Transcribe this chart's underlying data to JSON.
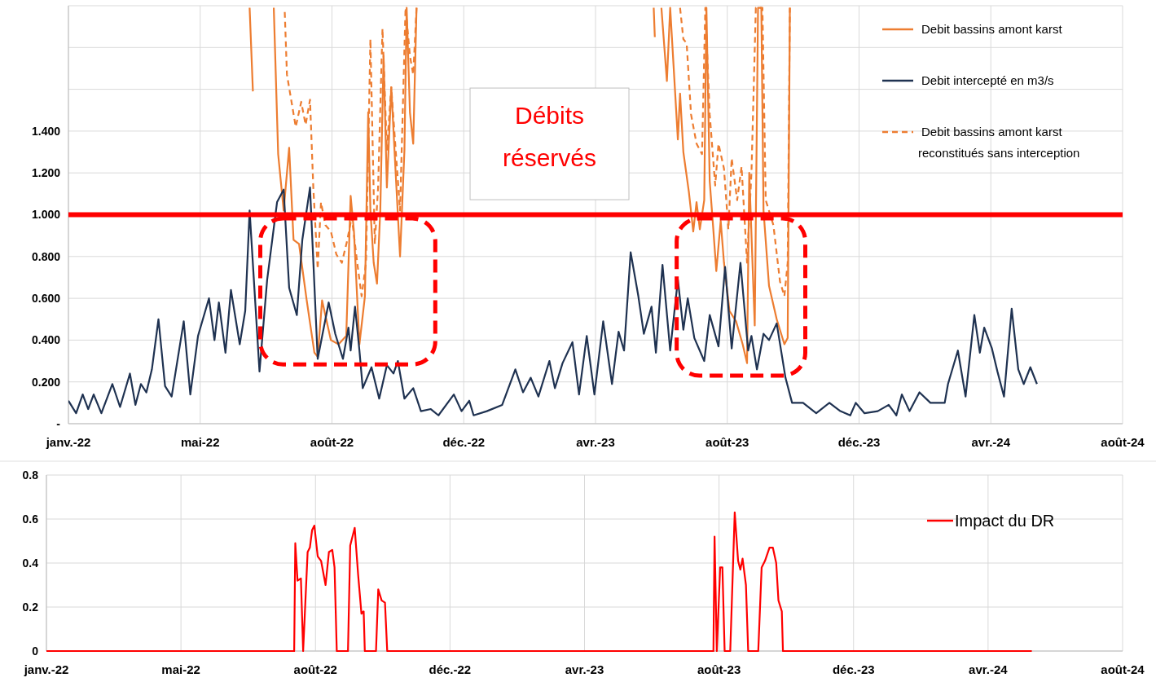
{
  "chart_data": [
    {
      "type": "line",
      "annotations": [
        "Débits réservés"
      ],
      "legend": "top right",
      "grid": true,
      "xlim": [
        "2022-01-01",
        "2024-08-18"
      ],
      "xticks": [
        {
          "value": "2022-01-01",
          "label": "janv.-22"
        },
        {
          "value": "2022-05-01",
          "label": "mai-22"
        },
        {
          "value": "2022-08-29",
          "label": "août-22"
        },
        {
          "value": "2022-12-27",
          "label": "déc.-22"
        },
        {
          "value": "2023-04-26",
          "label": "avr.-23"
        },
        {
          "value": "2023-08-24",
          "label": "août-23"
        },
        {
          "value": "2023-12-22",
          "label": "déc.-23"
        },
        {
          "value": "2024-04-20",
          "label": "avr.-24"
        },
        {
          "value": "2024-08-18",
          "label": "août-24"
        }
      ],
      "ylim": [
        0,
        2
      ],
      "yticks": [
        {
          "value": 0,
          "label": "-"
        },
        {
          "value": 0.2,
          "label": "0.200"
        },
        {
          "value": 0.4,
          "label": "0.400"
        },
        {
          "value": 0.6,
          "label": "0.600"
        },
        {
          "value": 0.8,
          "label": "0.800"
        },
        {
          "value": 1,
          "label": "1.000"
        },
        {
          "value": 1.2,
          "label": "1.200"
        },
        {
          "value": 1.4,
          "label": "1.400"
        },
        {
          "value": 1.6,
          "label": null
        },
        {
          "value": 1.8,
          "label": null
        },
        {
          "value": 2,
          "label": null
        }
      ],
      "ref_lines": [
        {
          "axis": "y",
          "value": 1,
          "color": "#ff0000"
        }
      ],
      "series": [
        {
          "name": "Debit bassins amont karst",
          "color": "#ed7d31",
          "line_style": "solid",
          "x": [
            "2022-06-15",
            "2022-06-18",
            "2022-06-19",
            "2022-07-07",
            "2022-07-11",
            "2022-07-16",
            "2022-07-21",
            "2022-07-25",
            "2022-07-30",
            "2022-08-06",
            "2022-08-13",
            "2022-08-16",
            "2022-08-20",
            "2022-08-28",
            "2022-09-04",
            "2022-09-11",
            "2022-09-15",
            "2022-09-18",
            "2022-09-23",
            "2022-09-28",
            "2022-10-01",
            "2022-10-03",
            "2022-10-06",
            "2022-10-09",
            "2022-10-12",
            "2022-10-15",
            "2022-10-18",
            "2022-10-22",
            "2022-10-26",
            "2022-10-30",
            "2022-11-03",
            "2022-11-05",
            "2022-11-08",
            "2022-11-11",
            "2022-11-14",
            "2022-11-15",
            "2023-06-18",
            "2023-06-19",
            "2023-06-20",
            "2023-06-25",
            "2023-06-30",
            "2023-07-03",
            "2023-07-10",
            "2023-07-12",
            "2023-07-15",
            "2023-07-20",
            "2023-07-24",
            "2023-07-27",
            "2023-07-30",
            "2023-08-03",
            "2023-08-05",
            "2023-08-08",
            "2023-08-11",
            "2023-08-14",
            "2023-08-18",
            "2023-08-21",
            "2023-08-26",
            "2023-09-01",
            "2023-09-07",
            "2023-09-11",
            "2023-09-13",
            "2023-09-18",
            "2023-09-21",
            "2023-09-24",
            "2023-09-26",
            "2023-10-01",
            "2023-10-08",
            "2023-10-15",
            "2023-10-18",
            "2023-10-20"
          ],
          "values": [
            1.99,
            1.59,
            null,
            1.99,
            1.29,
            1.02,
            1.32,
            0.88,
            0.86,
            0.59,
            0.34,
            0.32,
            0.59,
            0.4,
            0.38,
            0.42,
            1.09,
            0.92,
            0.38,
            0.61,
            1.49,
            1.02,
            0.77,
            0.67,
            1.02,
            1.76,
            1.13,
            1.61,
            1.2,
            0.8,
            1.31,
            1.99,
            1.49,
            1.34,
            1.99,
            null,
            1.99,
            1.85,
            null,
            1.99,
            1.64,
            1.99,
            1.36,
            1.58,
            1.3,
            1.11,
            0.92,
            1.06,
            0.93,
            1.07,
            1.99,
            1.16,
            0.95,
            0.73,
            0.97,
            0.77,
            0.54,
            0.49,
            0.38,
            0.29,
            1.2,
            0.47,
            1.99,
            1.99,
            1.02,
            0.66,
            0.5,
            0.38,
            0.41,
            1.99
          ]
        },
        {
          "name": "Debit intercepté en m3/s",
          "color": "#1f3251",
          "line_style": "solid",
          "x": [
            "2022-01-01",
            "2022-01-08",
            "2022-01-14",
            "2022-01-19",
            "2022-01-24",
            "2022-01-31",
            "2022-02-10",
            "2022-02-17",
            "2022-02-26",
            "2022-03-03",
            "2022-03-08",
            "2022-03-13",
            "2022-03-18",
            "2022-03-24",
            "2022-03-30",
            "2022-04-05",
            "2022-04-16",
            "2022-04-22",
            "2022-04-29",
            "2022-05-09",
            "2022-05-14",
            "2022-05-18",
            "2022-05-24",
            "2022-05-29",
            "2022-06-06",
            "2022-06-11",
            "2022-06-15",
            "2022-06-24",
            "2022-07-01",
            "2022-07-10",
            "2022-07-16",
            "2022-07-21",
            "2022-07-28",
            "2022-08-02",
            "2022-08-09",
            "2022-08-16",
            "2022-08-26",
            "2022-09-01",
            "2022-09-08",
            "2022-09-13",
            "2022-09-15",
            "2022-09-19",
            "2022-09-23",
            "2022-09-26",
            "2022-10-04",
            "2022-10-11",
            "2022-10-18",
            "2022-10-24",
            "2022-10-28",
            "2022-11-03",
            "2022-11-11",
            "2022-11-18",
            "2022-11-27",
            "2022-12-04",
            "2022-12-18",
            "2022-12-25",
            "2023-01-01",
            "2023-01-05",
            "2023-01-17",
            "2023-01-31",
            "2023-02-12",
            "2023-02-19",
            "2023-02-26",
            "2023-03-05",
            "2023-03-15",
            "2023-03-20",
            "2023-03-27",
            "2023-04-05",
            "2023-04-11",
            "2023-04-18",
            "2023-04-25",
            "2023-05-03",
            "2023-05-11",
            "2023-05-17",
            "2023-05-22",
            "2023-05-28",
            "2023-06-04",
            "2023-06-09",
            "2023-06-16",
            "2023-06-20",
            "2023-06-26",
            "2023-07-03",
            "2023-07-10",
            "2023-07-15",
            "2023-07-19",
            "2023-07-25",
            "2023-08-03",
            "2023-08-08",
            "2023-08-16",
            "2023-08-22",
            "2023-08-28",
            "2023-09-05",
            "2023-09-12",
            "2023-09-15",
            "2023-09-20",
            "2023-09-26",
            "2023-10-01",
            "2023-10-08",
            "2023-10-16",
            "2023-10-22",
            "2023-11-01",
            "2023-11-13",
            "2023-11-25",
            "2023-12-05",
            "2023-12-14",
            "2023-12-19",
            "2023-12-27",
            "2024-01-08",
            "2024-01-18",
            "2024-01-25",
            "2024-01-30",
            "2024-02-06",
            "2024-02-15",
            "2024-02-25",
            "2024-03-09",
            "2024-03-12",
            "2024-03-21",
            "2024-03-28",
            "2024-04-05",
            "2024-04-10",
            "2024-04-14",
            "2024-04-21",
            "2024-04-26",
            "2024-05-02",
            "2024-05-09",
            "2024-05-15",
            "2024-05-20",
            "2024-05-26",
            "2024-06-01"
          ],
          "values": [
            0.11,
            0.05,
            0.14,
            0.07,
            0.14,
            0.05,
            0.19,
            0.08,
            0.24,
            0.09,
            0.19,
            0.15,
            0.26,
            0.5,
            0.18,
            0.13,
            0.49,
            0.14,
            0.42,
            0.6,
            0.4,
            0.58,
            0.34,
            0.64,
            0.38,
            0.54,
            1.02,
            0.25,
            0.69,
            1.06,
            1.12,
            0.65,
            0.52,
            0.88,
            1.13,
            0.31,
            0.58,
            0.43,
            0.31,
            0.46,
            0.35,
            0.56,
            0.35,
            0.17,
            0.27,
            0.12,
            0.28,
            0.24,
            0.3,
            0.12,
            0.17,
            0.06,
            0.07,
            0.04,
            0.14,
            0.06,
            0.11,
            0.04,
            0.06,
            0.09,
            0.26,
            0.15,
            0.22,
            0.13,
            0.3,
            0.17,
            0.29,
            0.39,
            0.14,
            0.42,
            0.14,
            0.49,
            0.19,
            0.44,
            0.35,
            0.82,
            0.61,
            0.43,
            0.56,
            0.34,
            0.76,
            0.35,
            0.69,
            0.45,
            0.6,
            0.41,
            0.3,
            0.52,
            0.37,
            0.75,
            0.36,
            0.77,
            0.35,
            0.42,
            0.26,
            0.43,
            0.4,
            0.48,
            0.22,
            0.1,
            0.1,
            0.05,
            0.1,
            0.06,
            0.04,
            0.1,
            0.05,
            0.06,
            0.09,
            0.04,
            0.14,
            0.06,
            0.15,
            0.1,
            0.1,
            0.19,
            0.35,
            0.13,
            0.52,
            0.34,
            0.46,
            0.36,
            0.25,
            0.13,
            0.55,
            0.26,
            0.19,
            0.27,
            0.19
          ]
        },
        {
          "name": "Debit bassins amont karst reconstitués sans interception",
          "color": "#ed7d31",
          "line_style": "dashed",
          "x": [
            "2022-07-17",
            "2022-07-19",
            "2022-07-27",
            "2022-08-01",
            "2022-08-05",
            "2022-08-09",
            "2022-08-12",
            "2022-08-16",
            "2022-08-19",
            "2022-08-23",
            "2022-08-28",
            "2022-09-02",
            "2022-09-07",
            "2022-09-12",
            "2022-09-16",
            "2022-09-21",
            "2022-09-25",
            "2022-09-29",
            "2022-10-03",
            "2022-10-07",
            "2022-10-10",
            "2022-10-14",
            "2022-10-18",
            "2022-10-22",
            "2022-10-26",
            "2022-10-30",
            "2022-11-04",
            "2022-11-08",
            "2022-11-11",
            "2022-11-14",
            "2022-11-15",
            "2023-07-12",
            "2023-07-15",
            "2023-07-18",
            "2023-07-22",
            "2023-07-27",
            "2023-08-01",
            "2023-08-04",
            "2023-08-08",
            "2023-08-13",
            "2023-08-16",
            "2023-08-21",
            "2023-08-25",
            "2023-08-28",
            "2023-09-02",
            "2023-09-06",
            "2023-09-11",
            "2023-09-15",
            "2023-09-19",
            "2023-09-25",
            "2023-09-28",
            "2023-10-05",
            "2023-10-11",
            "2023-10-15",
            "2023-10-18",
            "2023-10-20"
          ],
          "values": [
            1.97,
            1.67,
            1.42,
            1.54,
            1.43,
            1.55,
            1.13,
            0.74,
            1.06,
            0.95,
            0.92,
            0.81,
            0.77,
            0.88,
            0.99,
            0.77,
            0.61,
            0.77,
            1.84,
            0.86,
            1.13,
            1.89,
            1.31,
            1.61,
            1.31,
            1.02,
            1.99,
            1.76,
            1.67,
            1.99,
            null,
            1.99,
            1.84,
            1.82,
            1.48,
            1.34,
            1.29,
            1.99,
            1.48,
            1.14,
            1.34,
            1.22,
            0.93,
            1.27,
            1.07,
            1.23,
            0.77,
            1.2,
            1.99,
            1.99,
            1.07,
            0.95,
            0.68,
            0.61,
            0.77,
            1.99
          ]
        }
      ]
    },
    {
      "type": "line",
      "legend": "top right",
      "grid": true,
      "xlim": [
        "2022-01-01",
        "2024-08-18"
      ],
      "xticks": [
        {
          "value": "2022-01-01",
          "label": "janv.-22"
        },
        {
          "value": "2022-05-01",
          "label": "mai-22"
        },
        {
          "value": "2022-08-29",
          "label": "août-22"
        },
        {
          "value": "2022-12-27",
          "label": "déc.-22"
        },
        {
          "value": "2023-04-26",
          "label": "avr.-23"
        },
        {
          "value": "2023-08-24",
          "label": "août-23"
        },
        {
          "value": "2023-12-22",
          "label": "déc.-23"
        },
        {
          "value": "2024-04-20",
          "label": "avr.-24"
        },
        {
          "value": "2024-08-18",
          "label": "août-24"
        }
      ],
      "ylim": [
        0,
        0.8
      ],
      "yticks": [
        0,
        0.2,
        0.4,
        0.6,
        0.8
      ],
      "series": [
        {
          "name": "Impact du DR",
          "color": "#ff0000",
          "line_style": "solid",
          "x": [
            "2022-01-01",
            "2022-08-10",
            "2022-08-11",
            "2022-08-13",
            "2022-08-16",
            "2022-08-18",
            "2022-08-22",
            "2022-08-24",
            "2022-08-26",
            "2022-08-28",
            "2022-08-31",
            "2022-09-03",
            "2022-09-07",
            "2022-09-10",
            "2022-09-13",
            "2022-09-15",
            "2022-09-17",
            "2022-09-27",
            "2022-09-29",
            "2022-10-03",
            "2022-10-06",
            "2022-10-09",
            "2022-10-11",
            "2022-10-12",
            "2022-10-22",
            "2022-10-24",
            "2022-10-27",
            "2022-10-30",
            "2022-11-01",
            "2023-08-19",
            "2023-08-20",
            "2023-08-22",
            "2023-08-25",
            "2023-08-27",
            "2023-08-29",
            "2023-09-03",
            "2023-09-07",
            "2023-09-10",
            "2023-09-12",
            "2023-09-14",
            "2023-09-17",
            "2023-09-19",
            "2023-09-28",
            "2023-10-01",
            "2023-10-04",
            "2023-10-08",
            "2023-10-11",
            "2023-10-14",
            "2023-10-16",
            "2023-10-19",
            "2023-10-20",
            "2024-05-29"
          ],
          "values": [
            0,
            0,
            0.49,
            0.32,
            0.33,
            0,
            0.45,
            0.47,
            0.55,
            0.57,
            0.43,
            0.41,
            0.3,
            0.45,
            0.46,
            0.38,
            0,
            0,
            0.48,
            0.56,
            0.35,
            0.17,
            0.18,
            0,
            0,
            0.28,
            0.23,
            0.22,
            0,
            0,
            0.52,
            0,
            0.38,
            0.38,
            0,
            0,
            0.63,
            0.41,
            0.37,
            0.42,
            0.3,
            0,
            0,
            0.38,
            0.41,
            0.47,
            0.47,
            0.4,
            0.23,
            0.18,
            0,
            0
          ]
        }
      ]
    }
  ]
}
